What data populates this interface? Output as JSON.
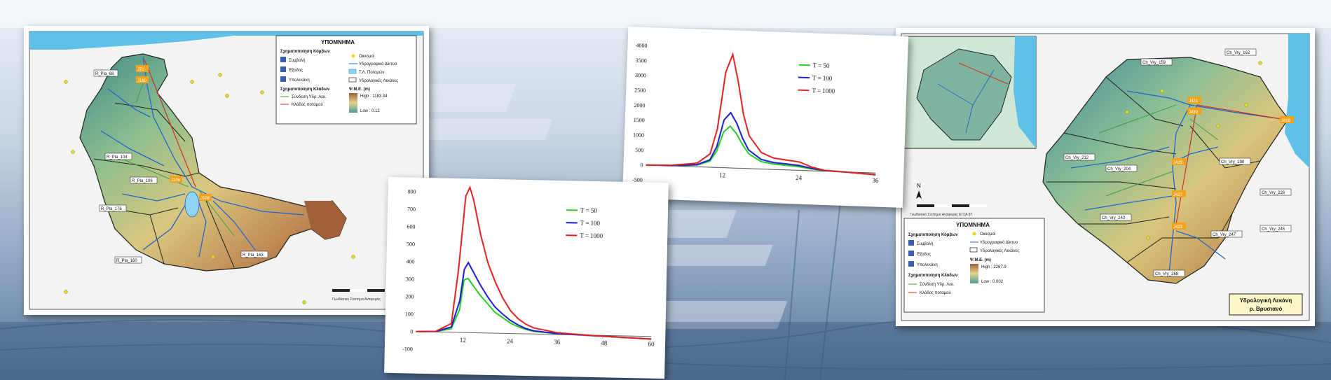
{
  "map_left": {
    "legend_title": "ΥΠΟΜΝΗΜΑ",
    "sec_nodes": "Σχηματοποίηση Κόμβων",
    "sec_links": "Σχηματοποίηση Κλάδων",
    "items": {
      "symvoli": "Συμβολή",
      "exodos": "Έξοδος",
      "ypolekani": "Υπολεκάνη",
      "oikismoi": "Οικισμοί",
      "ydro_diktyo": "Υδρογραφικό Δίκτυο",
      "tl_potamon": "Τ.Λ. Ποταμών",
      "ydro_lekanes": "Υδρολογικές Λεκάνες",
      "yme": "Ψ.Μ.Ε. (m)",
      "high": "High : 1183.34",
      "low": "Low : 0.12",
      "syndesi": "Σύνδεση Υδρ. Λεκ.",
      "kladosp": "Κλάδος ποταμού"
    },
    "labels": {
      "b68": "R_Pla_68",
      "b104": "R_Pla_104",
      "b106": "R_Pla_106",
      "b176": "R_Pla_176",
      "b160": "R_Pla_160",
      "b163": "R_Pla_163",
      "j1": "J72",
      "j2": "J160",
      "j3": "J106",
      "j4": "J108"
    },
    "credit": "Γεωδαιτικό Σύστημα Αναφοράς"
  },
  "chart_left": {
    "chart_data": {
      "type": "line",
      "y_ticks": [
        "800",
        "700",
        "600",
        "500",
        "400",
        "300",
        "200",
        "100",
        "0",
        "-100"
      ],
      "x_ticks": [
        "12",
        "24",
        "36",
        "48",
        "60"
      ],
      "ylim": [
        -100,
        800
      ],
      "xlim": [
        0,
        60
      ],
      "series": [
        {
          "name": "T = 50",
          "color": "#22cc22",
          "x": [
            0,
            5,
            9,
            11,
            12,
            13,
            14,
            16,
            18,
            20,
            22,
            24,
            26,
            28,
            30,
            36,
            42,
            48,
            54,
            60
          ],
          "y": [
            0,
            2,
            20,
            130,
            300,
            310,
            280,
            220,
            170,
            120,
            90,
            60,
            40,
            25,
            15,
            5,
            0,
            -5,
            -10,
            -15
          ]
        },
        {
          "name": "T = 100",
          "color": "#1a1ad0",
          "x": [
            0,
            5,
            9,
            11,
            12,
            13,
            14,
            16,
            18,
            20,
            22,
            24,
            26,
            28,
            30,
            36,
            42,
            48,
            54,
            60
          ],
          "y": [
            0,
            2,
            30,
            180,
            360,
            400,
            360,
            280,
            210,
            150,
            110,
            75,
            50,
            30,
            18,
            5,
            0,
            -5,
            -10,
            -15
          ]
        },
        {
          "name": "T = 1000",
          "color": "#e02020",
          "x": [
            0,
            5,
            9,
            10.5,
            12,
            13,
            14,
            16,
            18,
            20,
            22,
            24,
            26,
            28,
            30,
            36,
            42,
            48,
            54,
            60
          ],
          "y": [
            0,
            3,
            50,
            350,
            780,
            830,
            760,
            560,
            400,
            290,
            200,
            130,
            85,
            55,
            35,
            10,
            2,
            -5,
            -10,
            -15
          ]
        }
      ]
    }
  },
  "chart_right": {
    "chart_data": {
      "type": "line",
      "y_ticks": [
        "4000",
        "3500",
        "3000",
        "2500",
        "2000",
        "1500",
        "1000",
        "500",
        "0",
        "-500"
      ],
      "x_ticks": [
        "12",
        "24",
        "36"
      ],
      "ylim": [
        -500,
        4000
      ],
      "xlim": [
        0,
        36
      ],
      "series": [
        {
          "name": "T = 50",
          "color": "#22cc22",
          "x": [
            0,
            4,
            8,
            10,
            11,
            12,
            13,
            14,
            15,
            16,
            18,
            20,
            22,
            24,
            26,
            28,
            32,
            36
          ],
          "y": [
            0,
            10,
            60,
            200,
            550,
            1200,
            1400,
            1150,
            800,
            500,
            250,
            180,
            150,
            120,
            60,
            20,
            -10,
            -60
          ]
        },
        {
          "name": "T = 100",
          "color": "#1a1ad0",
          "x": [
            0,
            4,
            8,
            10,
            11,
            12,
            13,
            14,
            15,
            16,
            18,
            20,
            22,
            24,
            26,
            28,
            32,
            36
          ],
          "y": [
            0,
            10,
            70,
            250,
            700,
            1600,
            1850,
            1500,
            1000,
            620,
            320,
            230,
            200,
            160,
            80,
            25,
            -10,
            -60
          ]
        },
        {
          "name": "T = 1000",
          "color": "#e02020",
          "x": [
            0,
            4,
            8,
            10,
            11,
            12,
            13,
            14,
            15,
            16,
            18,
            20,
            22,
            24,
            26,
            28,
            32,
            36
          ],
          "y": [
            0,
            20,
            120,
            450,
            1300,
            3200,
            3800,
            2900,
            1800,
            1100,
            550,
            380,
            330,
            280,
            120,
            30,
            -10,
            -60
          ]
        }
      ]
    }
  },
  "map_right": {
    "legend_title": "ΥΠΟΜΝΗΜΑ",
    "sec_nodes": "Σχηματοποίηση Κόμβων",
    "sec_links": "Σχηματοποίηση Κλάδων",
    "items": {
      "symvoli": "Συμβολή",
      "exodos": "Έξοδος",
      "ypolekani": "Υπολεκάνη",
      "oikismoi": "Οικισμοί",
      "ydro_diktyo": "Υδρογραφικό Δίκτυο",
      "ydro_lekanes": "Υδρολογικές Λεκάνες",
      "yme": "Ψ.Μ.Ε. (m)",
      "high": "High : 2267.9",
      "low": "Low : 0.002",
      "syndesi": "Σύνδεση Υδρ. Λεκ.",
      "kladosp": "Κλάδος ποταμού"
    },
    "labels": {
      "b159": "Ch_Vry_159",
      "b162": "Ch_Vry_162",
      "b212": "Ch_Vry_212",
      "b204": "Ch_Vry_204",
      "b198": "Ch_Vry_198",
      "b226": "Ch_Vry_226",
      "b243": "Ch_Vry_243",
      "b247": "Ch_Vry_247",
      "b245": "Ch_Vry_245",
      "b268": "Ch_Vry_268",
      "j421": "J421",
      "j430": "J430",
      "j429": "J429",
      "j427": "J427",
      "j423": "J423",
      "j419": "J419"
    },
    "title1": "Υδρολογική Λεκάνη",
    "title2": "ρ. Βρυσιανό",
    "credit": "Γεωδαιτικό Σύστημα Αναφοράς ΕΓΣΑ 87"
  }
}
